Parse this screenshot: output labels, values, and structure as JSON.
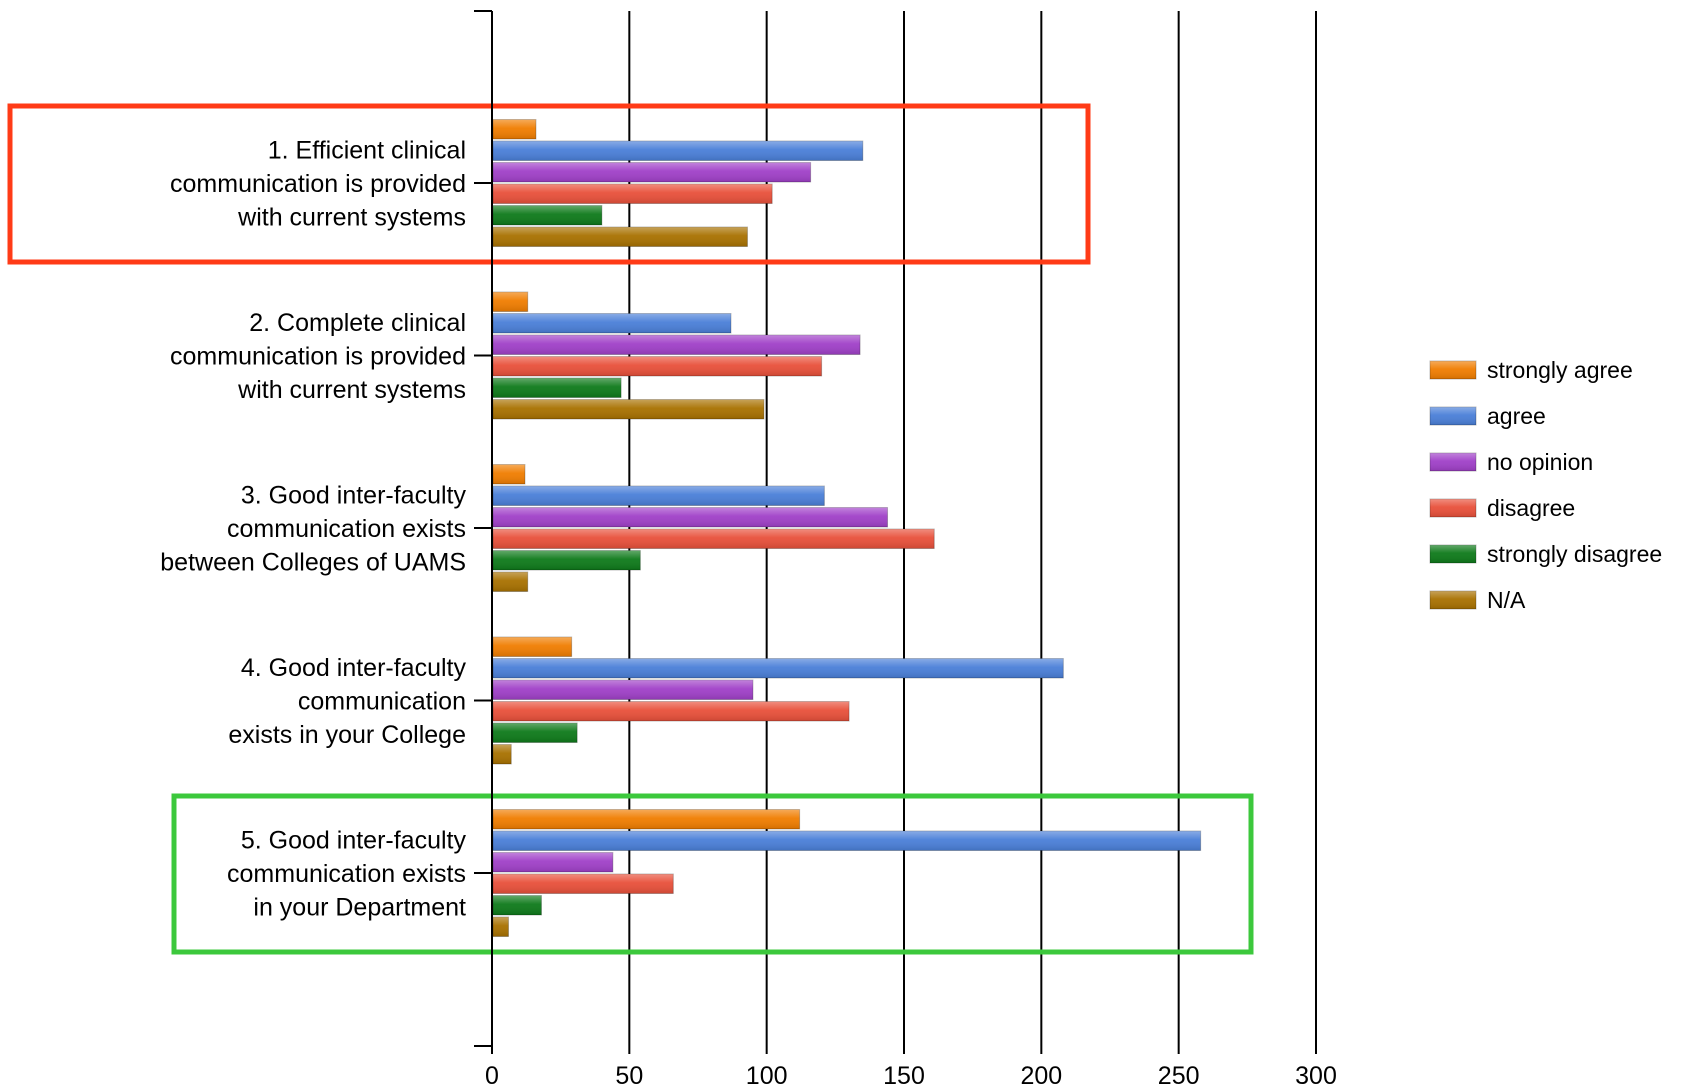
{
  "chart_data": {
    "type": "bar",
    "orientation": "horizontal",
    "categories": [
      [
        "1. Efficient clinical",
        "communication is provided",
        "with current systems"
      ],
      [
        "2. Complete clinical",
        "communication is provided",
        "with current systems"
      ],
      [
        "3. Good inter-faculty",
        "communication exists",
        "between Colleges of UAMS"
      ],
      [
        "4. Good inter-faculty",
        "communication",
        "exists in your College"
      ],
      [
        "5. Good inter-faculty",
        "communication exists",
        "in your Department"
      ]
    ],
    "series": [
      {
        "name": "strongly agree",
        "color": "#f07d00",
        "values": [
          16,
          13,
          12,
          29,
          112
        ]
      },
      {
        "name": "agree",
        "color": "#4a7fd8",
        "values": [
          135,
          87,
          121,
          208,
          258
        ]
      },
      {
        "name": "no opinion",
        "color": "#a040c8",
        "values": [
          116,
          134,
          144,
          95,
          44
        ]
      },
      {
        "name": "disagree",
        "color": "#e8503a",
        "values": [
          102,
          120,
          161,
          130,
          66
        ]
      },
      {
        "name": "strongly disagree",
        "color": "#0e7a1a",
        "values": [
          40,
          47,
          54,
          31,
          18
        ]
      },
      {
        "name": "N/A",
        "color": "#a87100",
        "values": [
          93,
          99,
          13,
          7,
          6
        ]
      }
    ],
    "xlim": [
      0,
      300
    ],
    "xticks": [
      0,
      50,
      100,
      150,
      200,
      250,
      300
    ],
    "title": "",
    "xlabel": "",
    "ylabel": "",
    "grid": "vertical",
    "legend": "right",
    "highlights": [
      {
        "category_index": 0,
        "color": "#ff3b17"
      },
      {
        "category_index": 4,
        "color": "#3cc83c"
      }
    ]
  }
}
